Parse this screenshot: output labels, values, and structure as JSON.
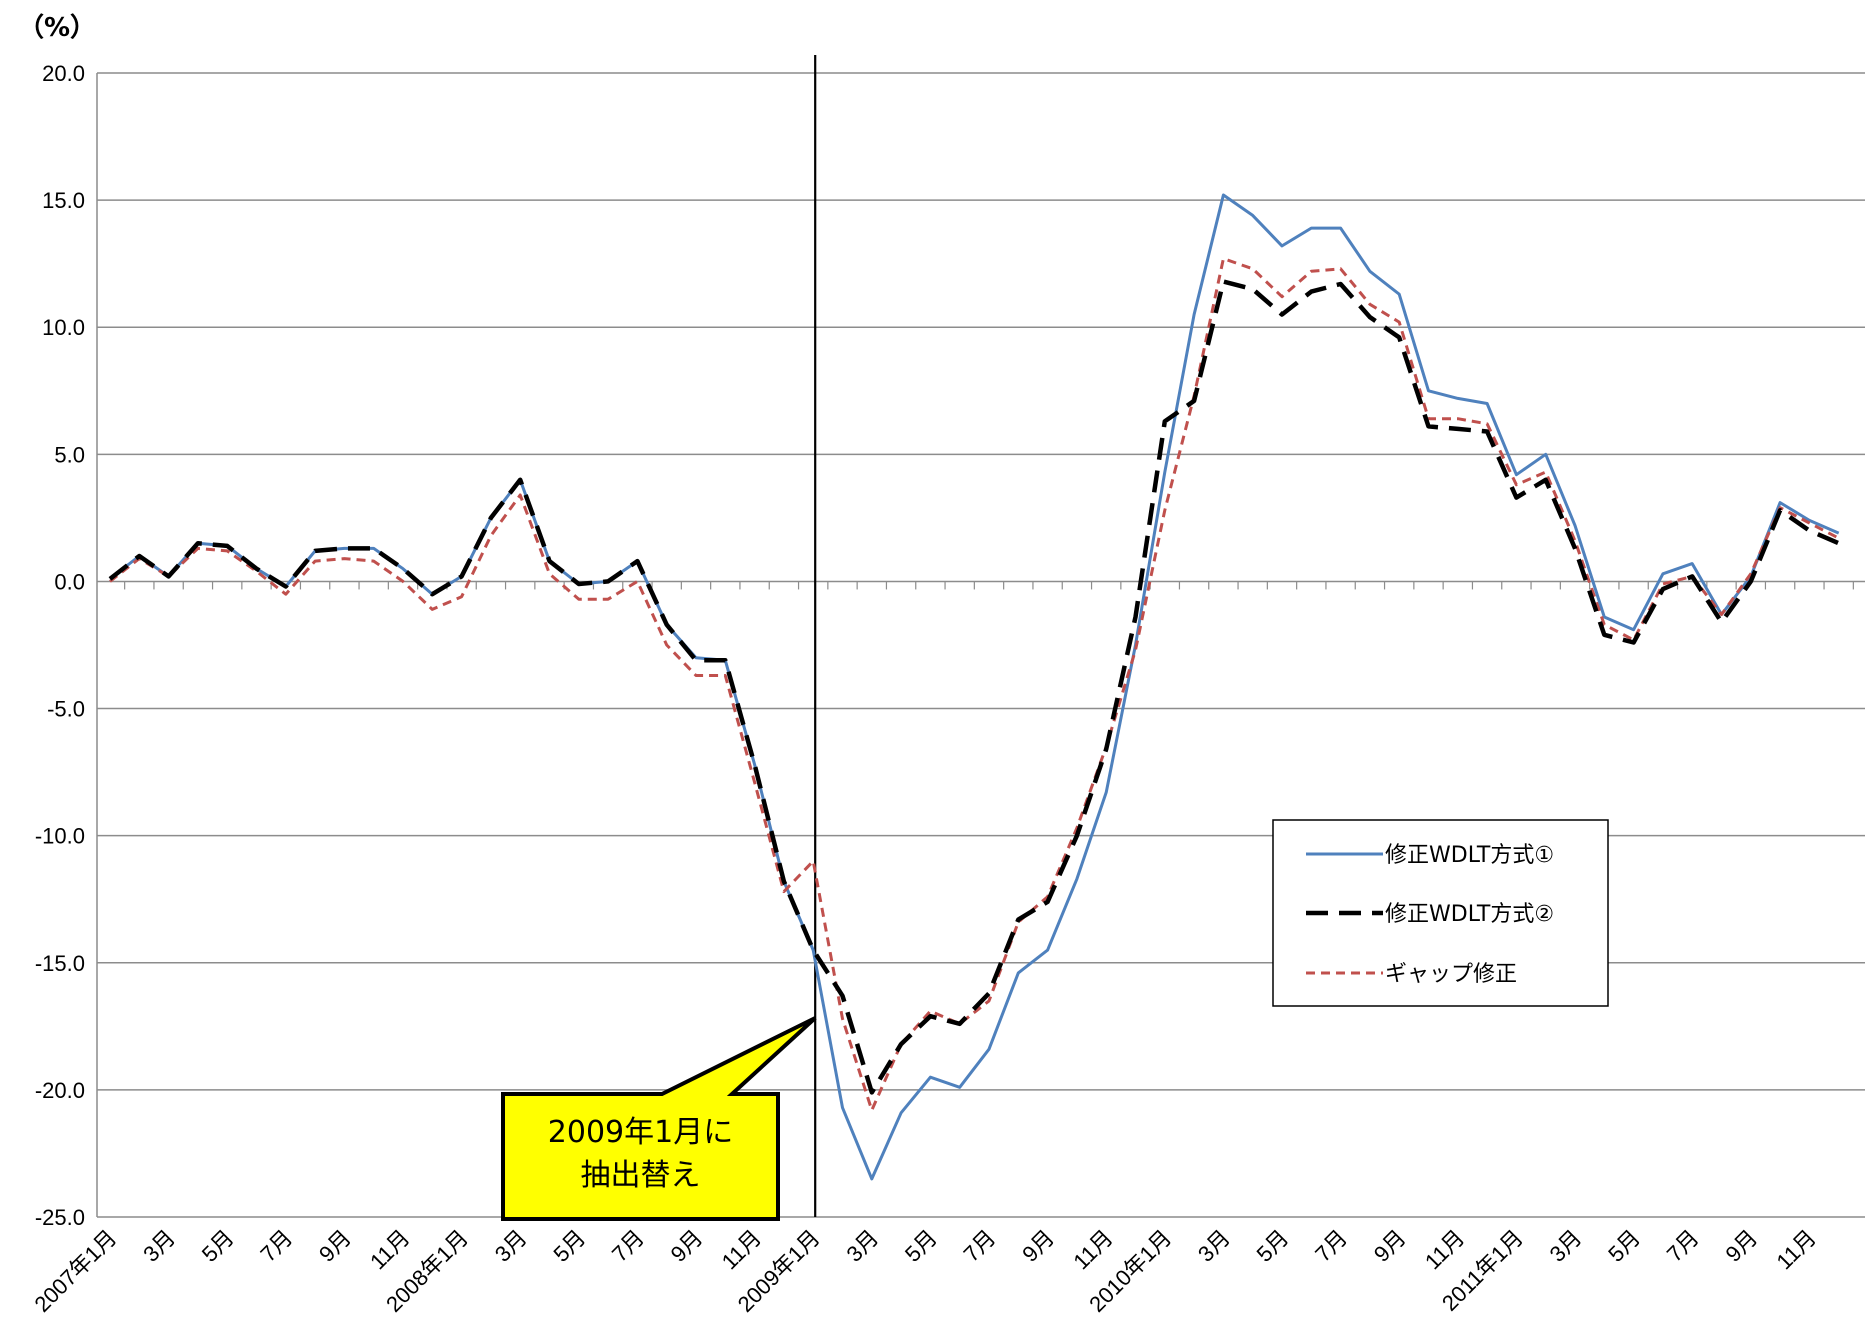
{
  "unit_label": "（%）",
  "chart_data": {
    "type": "line",
    "title": "",
    "xlabel": "",
    "ylabel": "（%）",
    "ylim": [
      -25,
      20
    ],
    "yticks": [
      20,
      15,
      10,
      5,
      0,
      -5,
      -10,
      -15,
      -20,
      -25
    ],
    "ytick_labels": [
      "20.0",
      "15.0",
      "10.0",
      "5.0",
      "0.0",
      "-5.0",
      "-10.0",
      "-15.0",
      "-20.0",
      "-25.0"
    ],
    "grid": true,
    "legend_position": "lower-right",
    "x_tick_labels": [
      "2007年1月",
      "3月",
      "5月",
      "7月",
      "9月",
      "11月",
      "2008年1月",
      "3月",
      "5月",
      "7月",
      "9月",
      "11月",
      "2009年1月",
      "3月",
      "5月",
      "7月",
      "9月",
      "11月",
      "2010年1月",
      "3月",
      "5月",
      "7月",
      "9月",
      "11月",
      "2011年1月",
      "3月",
      "5月",
      "7月",
      "9月",
      "11月"
    ],
    "months": [
      "2007-01",
      "2007-02",
      "2007-03",
      "2007-04",
      "2007-05",
      "2007-06",
      "2007-07",
      "2007-08",
      "2007-09",
      "2007-10",
      "2007-11",
      "2007-12",
      "2008-01",
      "2008-02",
      "2008-03",
      "2008-04",
      "2008-05",
      "2008-06",
      "2008-07",
      "2008-08",
      "2008-09",
      "2008-10",
      "2008-11",
      "2008-12",
      "2009-01",
      "2009-02",
      "2009-03",
      "2009-04",
      "2009-05",
      "2009-06",
      "2009-07",
      "2009-08",
      "2009-09",
      "2009-10",
      "2009-11",
      "2009-12",
      "2010-01",
      "2010-02",
      "2010-03",
      "2010-04",
      "2010-05",
      "2010-06",
      "2010-07",
      "2010-08",
      "2010-09",
      "2010-10",
      "2010-11",
      "2010-12",
      "2011-01",
      "2011-02",
      "2011-03",
      "2011-04",
      "2011-05",
      "2011-06",
      "2011-07",
      "2011-08",
      "2011-09",
      "2011-10",
      "2011-11",
      "2011-12"
    ],
    "series": [
      {
        "name": "修正WDLT方式①",
        "color": "#4F81BD",
        "style": "solid",
        "values": [
          0.1,
          1.0,
          0.2,
          1.5,
          1.4,
          0.5,
          -0.2,
          1.2,
          1.3,
          1.3,
          0.5,
          -0.5,
          0.2,
          2.5,
          4.0,
          0.8,
          -0.1,
          0.0,
          0.8,
          -1.7,
          -3.0,
          -3.1,
          -7.2,
          -11.8,
          -14.5,
          -20.7,
          -23.5,
          -20.9,
          -19.5,
          -19.9,
          -18.4,
          -15.4,
          -14.5,
          -11.7,
          -8.3,
          -2.5,
          4.3,
          10.5,
          15.2,
          14.4,
          13.2,
          13.9,
          13.9,
          12.2,
          11.3,
          7.5,
          7.2,
          7.0,
          4.2,
          5.0,
          2.2,
          -1.4,
          -1.9,
          0.3,
          0.7,
          -1.3,
          0.2,
          3.1,
          2.4,
          1.9
        ]
      },
      {
        "name": "修正WDLT方式②",
        "color": "#000000",
        "style": "long-dash",
        "values": [
          0.1,
          1.0,
          0.2,
          1.5,
          1.4,
          0.5,
          -0.2,
          1.2,
          1.3,
          1.3,
          0.5,
          -0.5,
          0.2,
          2.5,
          4.0,
          0.8,
          -0.1,
          0.0,
          0.8,
          -1.7,
          -3.1,
          -3.1,
          -7.2,
          -11.8,
          -14.5,
          -16.3,
          -20.1,
          -18.2,
          -17.1,
          -17.4,
          -16.2,
          -13.3,
          -12.6,
          -10.0,
          -6.6,
          -1.4,
          6.3,
          7.1,
          11.8,
          11.5,
          10.5,
          11.4,
          11.7,
          10.4,
          9.6,
          6.1,
          6.0,
          5.9,
          3.3,
          4.0,
          1.3,
          -2.1,
          -2.4,
          -0.3,
          0.2,
          -1.6,
          0.0,
          2.8,
          2.0,
          1.5
        ]
      },
      {
        "name": "ギャップ修正",
        "color": "#C0504D",
        "style": "short-dash",
        "values": [
          0.0,
          0.9,
          0.2,
          1.3,
          1.2,
          0.4,
          -0.5,
          0.8,
          0.9,
          0.8,
          0.0,
          -1.1,
          -0.6,
          1.8,
          3.4,
          0.3,
          -0.7,
          -0.7,
          0.0,
          -2.5,
          -3.7,
          -3.7,
          -7.9,
          -12.2,
          -11.0,
          -17.2,
          -20.8,
          -18.2,
          -16.9,
          -17.4,
          -16.5,
          -13.4,
          -12.4,
          -9.7,
          -6.5,
          -2.7,
          2.8,
          7.3,
          12.7,
          12.3,
          11.2,
          12.2,
          12.3,
          10.9,
          10.2,
          6.4,
          6.4,
          6.2,
          3.8,
          4.3,
          1.6,
          -1.7,
          -2.3,
          -0.1,
          0.2,
          -1.3,
          0.3,
          2.9,
          2.3,
          1.7
        ]
      }
    ],
    "annotations": [
      {
        "text_lines": [
          "2009年1月に",
          "抽出替え"
        ],
        "marker_month": "2009-01"
      }
    ]
  }
}
